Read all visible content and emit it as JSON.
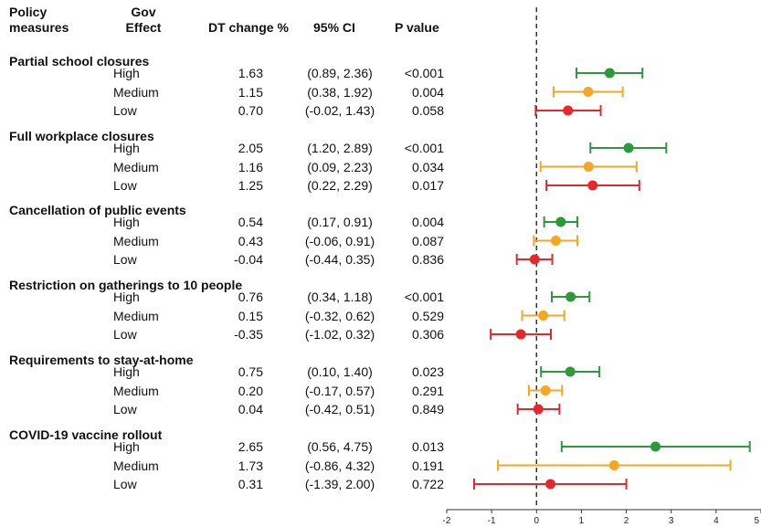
{
  "headers": {
    "policy": [
      "Policy",
      "measures"
    ],
    "effect": [
      "Gov",
      "Effect"
    ],
    "dt": "DT change %",
    "ci": "95% CI",
    "p": "P value"
  },
  "colors": {
    "High": "#2a9a3a",
    "Medium": "#f5a623",
    "Low": "#e8262b"
  },
  "chart_data": {
    "type": "forest",
    "xlim": [
      -2,
      5
    ],
    "xticks": [
      "-2",
      "-1",
      "0",
      "1",
      "2",
      "3",
      "4",
      "5"
    ],
    "reference_line": 0,
    "groups": [
      {
        "name": "Partial school closures",
        "rows": [
          {
            "effect": "High",
            "est": 1.63,
            "lo": 0.89,
            "hi": 2.36,
            "est_text": "1.63",
            "ci_text": "(0.89, 2.36)",
            "p": "<0.001"
          },
          {
            "effect": "Medium",
            "est": 1.15,
            "lo": 0.38,
            "hi": 1.92,
            "est_text": "1.15",
            "ci_text": "(0.38, 1.92)",
            "p": "0.004"
          },
          {
            "effect": "Low",
            "est": 0.7,
            "lo": -0.02,
            "hi": 1.43,
            "est_text": "0.70",
            "ci_text": "(-0.02, 1.43)",
            "p": "0.058"
          }
        ]
      },
      {
        "name": "Full workplace closures",
        "rows": [
          {
            "effect": "High",
            "est": 2.05,
            "lo": 1.2,
            "hi": 2.89,
            "est_text": "2.05",
            "ci_text": "(1.20, 2.89)",
            "p": "<0.001"
          },
          {
            "effect": "Medium",
            "est": 1.16,
            "lo": 0.09,
            "hi": 2.23,
            "est_text": "1.16",
            "ci_text": "(0.09, 2.23)",
            "p": "0.034"
          },
          {
            "effect": "Low",
            "est": 1.25,
            "lo": 0.22,
            "hi": 2.29,
            "est_text": "1.25",
            "ci_text": "(0.22, 2.29)",
            "p": "0.017"
          }
        ]
      },
      {
        "name": "Cancellation of public events",
        "rows": [
          {
            "effect": "High",
            "est": 0.54,
            "lo": 0.17,
            "hi": 0.91,
            "est_text": "0.54",
            "ci_text": "(0.17, 0.91)",
            "p": "0.004"
          },
          {
            "effect": "Medium",
            "est": 0.43,
            "lo": -0.06,
            "hi": 0.91,
            "est_text": "0.43",
            "ci_text": "(-0.06, 0.91)",
            "p": "0.087"
          },
          {
            "effect": "Low",
            "est": -0.04,
            "lo": -0.44,
            "hi": 0.35,
            "est_text": "-0.04",
            "ci_text": "(-0.44, 0.35)",
            "p": "0.836"
          }
        ]
      },
      {
        "name": "Restriction on gatherings to 10 people",
        "rows": [
          {
            "effect": "High",
            "est": 0.76,
            "lo": 0.34,
            "hi": 1.18,
            "est_text": "0.76",
            "ci_text": "(0.34, 1.18)",
            "p": "<0.001"
          },
          {
            "effect": "Medium",
            "est": 0.15,
            "lo": -0.32,
            "hi": 0.62,
            "est_text": "0.15",
            "ci_text": "(-0.32, 0.62)",
            "p": "0.529"
          },
          {
            "effect": "Low",
            "est": -0.35,
            "lo": -1.02,
            "hi": 0.32,
            "est_text": "-0.35",
            "ci_text": "(-1.02, 0.32)",
            "p": "0.306"
          }
        ]
      },
      {
        "name": "Requirements to stay-at-home",
        "rows": [
          {
            "effect": "High",
            "est": 0.75,
            "lo": 0.1,
            "hi": 1.4,
            "est_text": "0.75",
            "ci_text": "(0.10, 1.40)",
            "p": "0.023"
          },
          {
            "effect": "Medium",
            "est": 0.2,
            "lo": -0.17,
            "hi": 0.57,
            "est_text": "0.20",
            "ci_text": "(-0.17, 0.57)",
            "p": "0.291"
          },
          {
            "effect": "Low",
            "est": 0.04,
            "lo": -0.42,
            "hi": 0.51,
            "est_text": "0.04",
            "ci_text": "(-0.42, 0.51)",
            "p": "0.849"
          }
        ]
      },
      {
        "name": "COVID-19 vaccine rollout",
        "rows": [
          {
            "effect": "High",
            "est": 2.65,
            "lo": 0.56,
            "hi": 4.75,
            "est_text": "2.65",
            "ci_text": "(0.56, 4.75)",
            "p": "0.013"
          },
          {
            "effect": "Medium",
            "est": 1.73,
            "lo": -0.86,
            "hi": 4.32,
            "est_text": "1.73",
            "ci_text": "(-0.86, 4.32)",
            "p": "0.191"
          },
          {
            "effect": "Low",
            "est": 0.31,
            "lo": -1.39,
            "hi": 2.0,
            "est_text": "0.31",
            "ci_text": "(-1.39, 2.00)",
            "p": "0.722"
          }
        ]
      }
    ]
  }
}
